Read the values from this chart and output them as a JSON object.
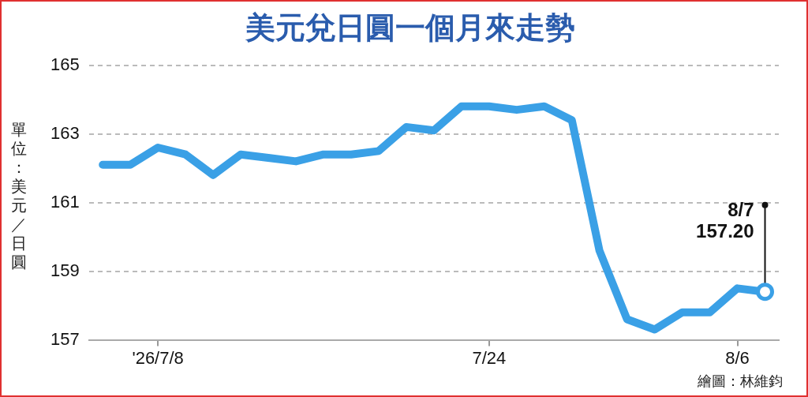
{
  "chart_data": {
    "type": "line",
    "title": "美元兌日圓一個月來走勢",
    "ylabel": "單位：美元／日圓",
    "categories": [
      null,
      null,
      "'26/7/8",
      null,
      null,
      null,
      null,
      null,
      null,
      null,
      null,
      null,
      null,
      null,
      "7/24",
      null,
      null,
      null,
      null,
      null,
      null,
      null,
      null,
      "8/6",
      null
    ],
    "series": [
      {
        "color": "#3aa0e6",
        "values": [
          162.1,
          162.1,
          162.6,
          162.4,
          161.8,
          162.4,
          162.3,
          162.2,
          162.4,
          162.4,
          162.5,
          163.2,
          163.1,
          163.8,
          163.8,
          163.7,
          163.8,
          163.4,
          159.6,
          157.6,
          157.3,
          157.8,
          157.8,
          158.5,
          158.4
        ]
      }
    ],
    "ylim": [
      157,
      165
    ],
    "yticks": [
      157,
      159,
      161,
      163,
      165
    ],
    "grid": "y",
    "legend": false,
    "marker": "none",
    "line_style": "solid",
    "annotations": [
      "8/7\n157.20",
      "繪圖：林維鈞"
    ]
  }
}
